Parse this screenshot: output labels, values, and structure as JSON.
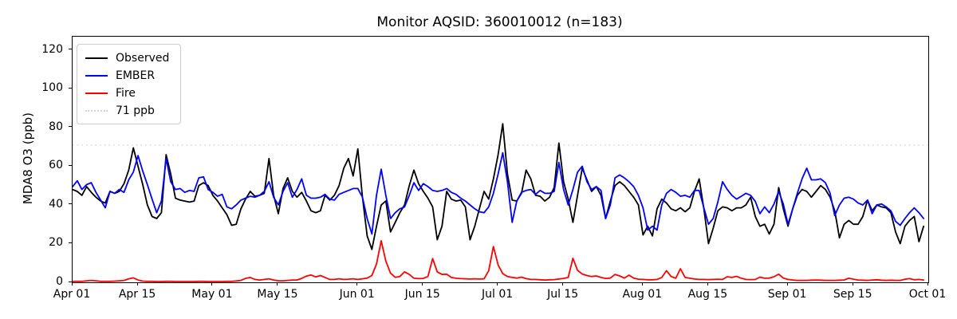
{
  "title": "Monitor AQSID: 360010012 (n=183)",
  "axes": {
    "ylabel": "MDA8 O3 (ppb)",
    "y_ticks": [
      0,
      20,
      40,
      60,
      80,
      100,
      120
    ],
    "x_ticks": [
      {
        "label": "Apr 01",
        "day": 0
      },
      {
        "label": "Apr 15",
        "day": 14
      },
      {
        "label": "May 01",
        "day": 30
      },
      {
        "label": "May 15",
        "day": 44
      },
      {
        "label": "Jun 01",
        "day": 61
      },
      {
        "label": "Jun 15",
        "day": 75
      },
      {
        "label": "Jul 01",
        "day": 91
      },
      {
        "label": "Jul 15",
        "day": 105
      },
      {
        "label": "Aug 01",
        "day": 122
      },
      {
        "label": "Aug 15",
        "day": 136
      },
      {
        "label": "Sep 01",
        "day": 153
      },
      {
        "label": "Sep 15",
        "day": 167
      },
      {
        "label": "Oct 01",
        "day": 183
      }
    ]
  },
  "legend": {
    "items": [
      {
        "label": "Observed",
        "color": "#000000",
        "style": "solid"
      },
      {
        "label": "EMBER",
        "color": "#0000ff",
        "style": "solid"
      },
      {
        "label": "Fire",
        "color": "#ff0000",
        "style": "solid"
      },
      {
        "label": "71 ppb",
        "color": "#d3d3d3",
        "style": "dotted"
      }
    ]
  },
  "chart_data": {
    "type": "line",
    "title": "Monitor AQSID: 360010012 (n=183)",
    "xlabel": "",
    "ylabel": "MDA8 O3 (ppb)",
    "x_start": "Apr 01",
    "x_end": "Sep 30",
    "x_axis_days": 183,
    "n_points": 183,
    "ylim": [
      0,
      127
    ],
    "grid": false,
    "legend_position": "upper-left",
    "threshold": {
      "label": "71 ppb",
      "value": 71,
      "color": "#d3d3d3",
      "style": "dotted"
    },
    "series": [
      {
        "name": "Observed",
        "color": "#000000",
        "values": [
          48,
          47,
          45,
          49.5,
          46.5,
          44,
          42,
          41,
          47,
          46,
          47,
          51,
          58,
          69.5,
          60,
          50.5,
          40,
          34,
          33,
          36,
          66,
          56,
          43.5,
          42.5,
          42,
          41.5,
          42,
          50,
          51.5,
          50,
          45,
          42,
          38.5,
          35,
          29.5,
          30,
          38,
          43,
          47,
          44.5,
          45,
          46,
          64,
          45,
          35.5,
          48.5,
          54,
          47,
          44,
          46.5,
          42,
          37,
          36,
          37,
          45,
          42.5,
          45,
          50,
          59,
          64,
          55,
          69,
          44,
          24,
          17,
          29,
          40,
          42,
          26,
          31,
          36,
          40,
          50,
          58,
          51,
          47,
          43.5,
          39,
          22,
          29,
          47,
          43,
          42,
          42.5,
          39,
          22,
          29,
          38,
          47,
          43,
          53.5,
          66,
          82,
          56,
          42.5,
          42,
          46,
          58,
          53.5,
          45,
          44.5,
          42,
          44,
          49,
          72,
          52,
          43,
          31,
          45,
          59,
          53,
          47,
          49.5,
          45,
          33,
          42,
          50,
          52,
          50,
          47,
          44,
          40,
          24.5,
          29,
          24,
          38,
          43,
          41,
          38,
          37,
          38.5,
          36.5,
          38.5,
          47,
          53.5,
          38,
          20,
          28,
          37,
          39,
          38.5,
          37,
          38.5,
          38.5,
          40,
          44,
          34,
          29,
          30,
          25,
          30,
          49,
          38,
          29,
          38,
          45,
          48,
          47,
          44,
          47,
          50,
          48,
          44,
          37,
          23,
          30,
          32,
          30,
          30,
          34,
          42.5,
          37,
          40,
          39,
          38.5,
          36,
          26,
          20,
          29,
          32,
          34,
          21,
          29
        ]
      },
      {
        "name": "EMBER",
        "color": "#0000ff",
        "values": [
          49.5,
          52.5,
          48,
          50.5,
          51.5,
          46.5,
          42.5,
          38.5,
          47,
          46,
          48,
          46.5,
          53,
          57,
          65.5,
          57.5,
          50.5,
          43,
          36,
          42,
          64,
          52,
          48,
          48.5,
          46.5,
          47.5,
          47,
          54,
          54.5,
          48,
          46.5,
          44.5,
          45.5,
          39,
          38,
          40,
          42.5,
          43.5,
          44.5,
          44,
          45,
          47,
          52,
          44,
          40,
          47,
          51.5,
          44,
          48,
          53.5,
          45,
          43.5,
          43.5,
          44,
          45.5,
          43,
          42.5,
          45.5,
          46.5,
          47.5,
          48.5,
          48.5,
          44,
          33,
          25,
          45,
          58.5,
          45,
          33,
          36,
          38,
          39,
          45,
          51.5,
          47.5,
          51,
          49.5,
          47.5,
          47,
          47.5,
          48.5,
          46.5,
          45.5,
          43.5,
          42,
          40,
          38,
          36.5,
          36,
          39,
          46,
          56,
          67,
          52,
          31,
          42,
          46.5,
          47.5,
          48,
          45.5,
          47.5,
          46,
          46,
          47,
          62,
          48,
          40,
          48,
          57,
          60,
          52,
          48,
          49.5,
          47.5,
          33,
          40,
          54,
          55.5,
          54,
          52,
          49.5,
          45,
          38.5,
          27,
          29,
          27,
          40,
          46,
          48,
          46.5,
          44.5,
          45,
          44,
          47.5,
          47.5,
          38.5,
          30,
          33,
          41.5,
          52,
          48,
          45,
          43,
          44.5,
          46,
          45,
          41.8,
          35.5,
          39,
          36,
          40.5,
          47,
          40.5,
          30,
          38,
          46,
          53.5,
          59,
          53,
          53,
          53.5,
          51.5,
          46,
          34.5,
          40,
          43.5,
          44,
          43,
          41,
          40,
          42.5,
          35.5,
          40,
          40.5,
          39,
          37,
          31.5,
          29.5,
          33,
          36,
          38.5,
          36,
          33
        ]
      },
      {
        "name": "Fire",
        "color": "#ff0000",
        "values": [
          0.5,
          0.5,
          0.5,
          0.8,
          1,
          0.8,
          0.5,
          0.5,
          0.5,
          0.6,
          0.8,
          1,
          1.8,
          2.3,
          1.2,
          0.6,
          0.5,
          0.5,
          0.4,
          0.4,
          0.5,
          0.5,
          0.4,
          0.4,
          0.4,
          0.4,
          0.4,
          0.5,
          0.5,
          0.4,
          0.4,
          0.4,
          0.4,
          0.5,
          0.5,
          0.7,
          1,
          2,
          2.5,
          1.5,
          1.2,
          1.5,
          1.8,
          1.2,
          0.8,
          0.8,
          1,
          1.2,
          1.2,
          2,
          3.2,
          3.8,
          2.8,
          3.5,
          2.5,
          1.5,
          1.5,
          1.8,
          1.5,
          1.6,
          1.8,
          1.5,
          1.8,
          2.2,
          3.5,
          9.5,
          21.5,
          11,
          4.7,
          2.6,
          3,
          5.4,
          4.1,
          2.1,
          1.9,
          2,
          3,
          12.3,
          5.4,
          4.1,
          4.2,
          2.5,
          2.1,
          1.9,
          1.8,
          1.7,
          1.8,
          1.7,
          1.8,
          6,
          18.5,
          9,
          4.5,
          3,
          2.5,
          2.2,
          2.7,
          1.9,
          1.5,
          1.5,
          1.3,
          1.2,
          1.3,
          1.4,
          1.7,
          2,
          2.5,
          12.4,
          6.2,
          4.3,
          3.5,
          3,
          3.3,
          2.5,
          2,
          2.2,
          4.1,
          3.3,
          2.2,
          3.7,
          2.2,
          1.6,
          1.5,
          1.3,
          1.3,
          1.5,
          2.5,
          6,
          3,
          2.1,
          7,
          2.5,
          2.1,
          1.7,
          1.5,
          1.5,
          1.4,
          1.5,
          1.6,
          1.5,
          2.9,
          2.5,
          3.1,
          2.1,
          1.5,
          1.4,
          1.5,
          2.7,
          2.1,
          2.2,
          2.9,
          4.2,
          2.2,
          1.5,
          1.2,
          1,
          1,
          1,
          1.1,
          1.2,
          1.1,
          1,
          1,
          1,
          1.1,
          1.2,
          2.1,
          1.6,
          1.2,
          1.1,
          1,
          1.2,
          1.3,
          1.1,
          1,
          1.1,
          1,
          1,
          1.6,
          1.9,
          1.3,
          1.5,
          1.2
        ]
      }
    ]
  }
}
